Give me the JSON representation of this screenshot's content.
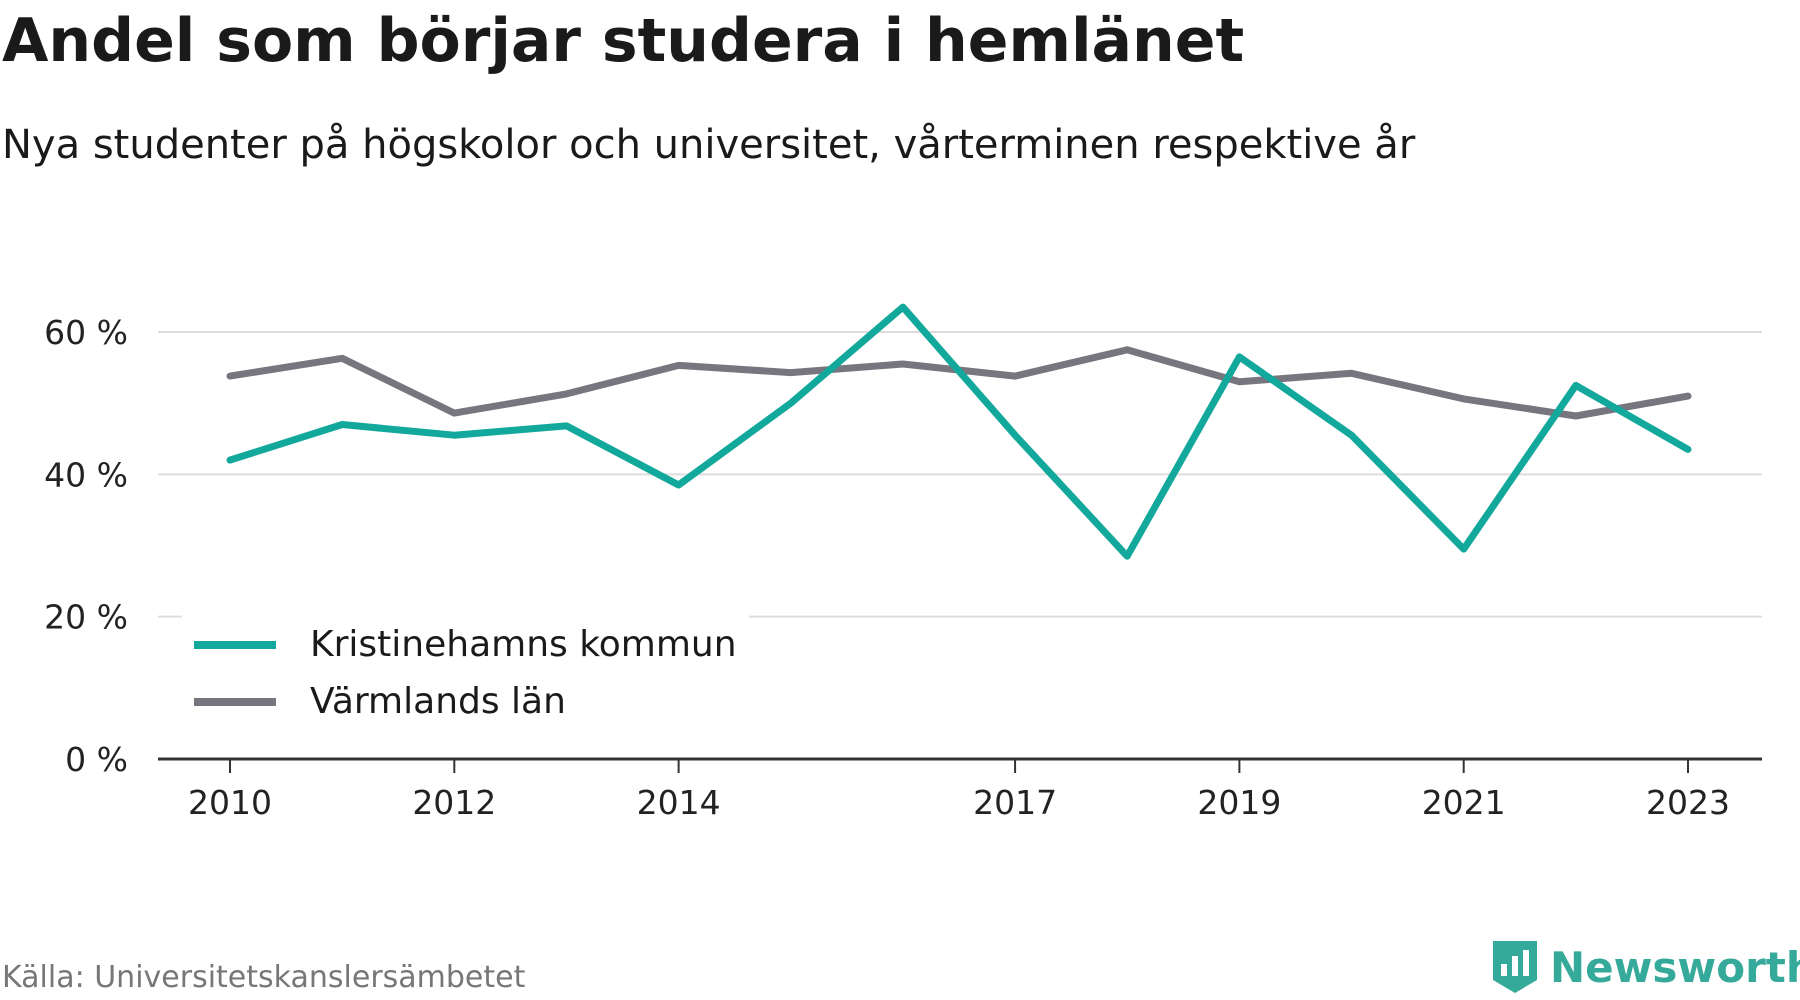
{
  "header": {
    "title": "Andel som börjar studera i hemlänet",
    "subtitle": "Nya studenter på högskolor och universitet, vårterminen respektive år"
  },
  "footer": {
    "source": "Källa: Universitetskanslersämbetet",
    "brand": "Newsworthy"
  },
  "colors": {
    "kristinehamn": "#12a89c",
    "varmland": "#77757e",
    "grid": "#dddddd",
    "axis": "#333333"
  },
  "chart_data": {
    "type": "line",
    "x": [
      2010,
      2011,
      2012,
      2013,
      2014,
      2015,
      2016,
      2017,
      2018,
      2019,
      2020,
      2021,
      2022,
      2023
    ],
    "x_tick_labels": [
      "2010",
      "2012",
      "2014",
      "2017",
      "2019",
      "2021",
      "2023"
    ],
    "x_tick_values": [
      2010,
      2012,
      2014,
      2017,
      2019,
      2021,
      2023
    ],
    "y_tick_labels": [
      "0 %",
      "20 %",
      "40 %",
      "60 %"
    ],
    "y_tick_values": [
      0,
      20,
      40,
      60
    ],
    "ylim": [
      0,
      60
    ],
    "grid": true,
    "legend_position": "bottom-left",
    "series": [
      {
        "name": "Kristinehamns kommun",
        "color": "#12a89c",
        "values": [
          42,
          47,
          45.5,
          46.8,
          38.5,
          50,
          63.5,
          45.5,
          28.5,
          56.5,
          45.5,
          29.5,
          52.5,
          43.5
        ]
      },
      {
        "name": "Värmlands län",
        "color": "#77757e",
        "values": [
          53.8,
          56.3,
          48.6,
          51.3,
          55.3,
          54.3,
          55.5,
          53.8,
          57.5,
          53,
          54.2,
          50.6,
          48.2,
          51
        ]
      }
    ]
  }
}
